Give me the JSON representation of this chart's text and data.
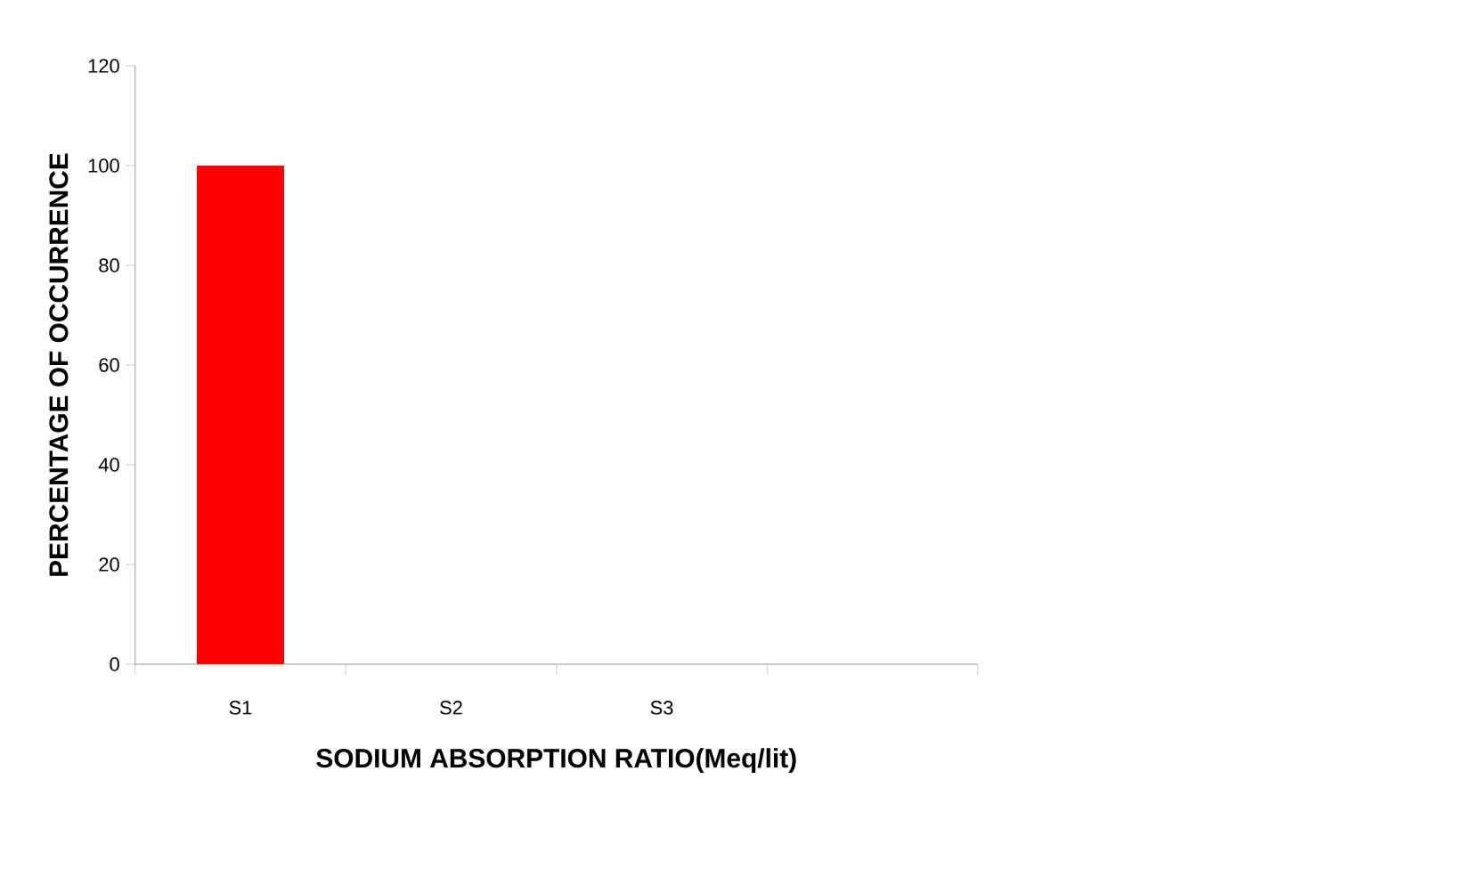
{
  "chart_data": {
    "type": "bar",
    "xlabel": "SODIUM ABSORPTION RATIO(Meq/lit)",
    "ylabel": "PERCENTAGE  OF OCCURRENCE",
    "categories": [
      "S1",
      "S2",
      "S3",
      null
    ],
    "values": [
      100,
      0,
      0,
      null
    ],
    "color": "#ff0000",
    "ylim": [
      0,
      120
    ],
    "yticks": [
      0,
      20,
      40,
      60,
      80,
      100,
      120
    ],
    "grid": false
  }
}
